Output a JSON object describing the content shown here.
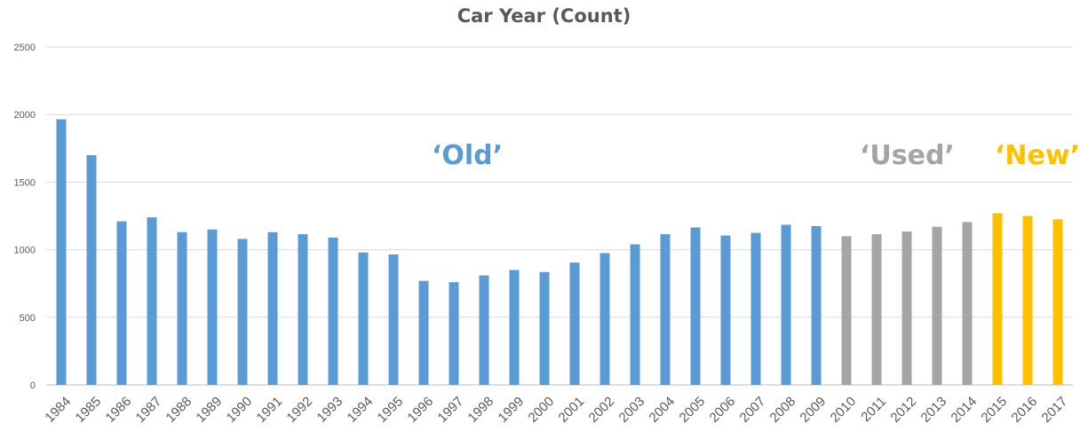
{
  "chart_data": {
    "type": "bar",
    "title": "Car Year (Count)",
    "xlabel": "",
    "ylabel": "",
    "ylim": [
      0,
      2500
    ],
    "yticks": [
      0,
      500,
      1000,
      1500,
      2000,
      2500
    ],
    "grid": true,
    "legend": "none",
    "categories": [
      "1984",
      "1985",
      "1986",
      "1987",
      "1988",
      "1989",
      "1990",
      "1991",
      "1992",
      "1993",
      "1994",
      "1995",
      "1996",
      "1997",
      "1998",
      "1999",
      "2000",
      "2001",
      "2002",
      "2003",
      "2004",
      "2005",
      "2006",
      "2007",
      "2008",
      "2009",
      "2010",
      "2011",
      "2012",
      "2013",
      "2014",
      "2015",
      "2016",
      "2017"
    ],
    "values": [
      1965,
      1700,
      1210,
      1240,
      1130,
      1150,
      1080,
      1130,
      1115,
      1090,
      980,
      965,
      770,
      760,
      810,
      850,
      835,
      905,
      975,
      1040,
      1115,
      1165,
      1105,
      1125,
      1185,
      1175,
      1100,
      1115,
      1135,
      1170,
      1205,
      1270,
      1250,
      1225
    ],
    "groups": [
      {
        "label": "‘Old’",
        "from": "1984",
        "to": "2009",
        "color": "#5b9bd5"
      },
      {
        "label": "‘Used’",
        "from": "2010",
        "to": "2014",
        "color": "#a5a5a5"
      },
      {
        "label": "‘New’",
        "from": "2015",
        "to": "2017",
        "color": "#ffc000"
      }
    ]
  },
  "colors": {
    "grid": "#d9d9d9",
    "axis": "#bfbfbf",
    "tick_text": "#595959",
    "title": "#595959"
  }
}
